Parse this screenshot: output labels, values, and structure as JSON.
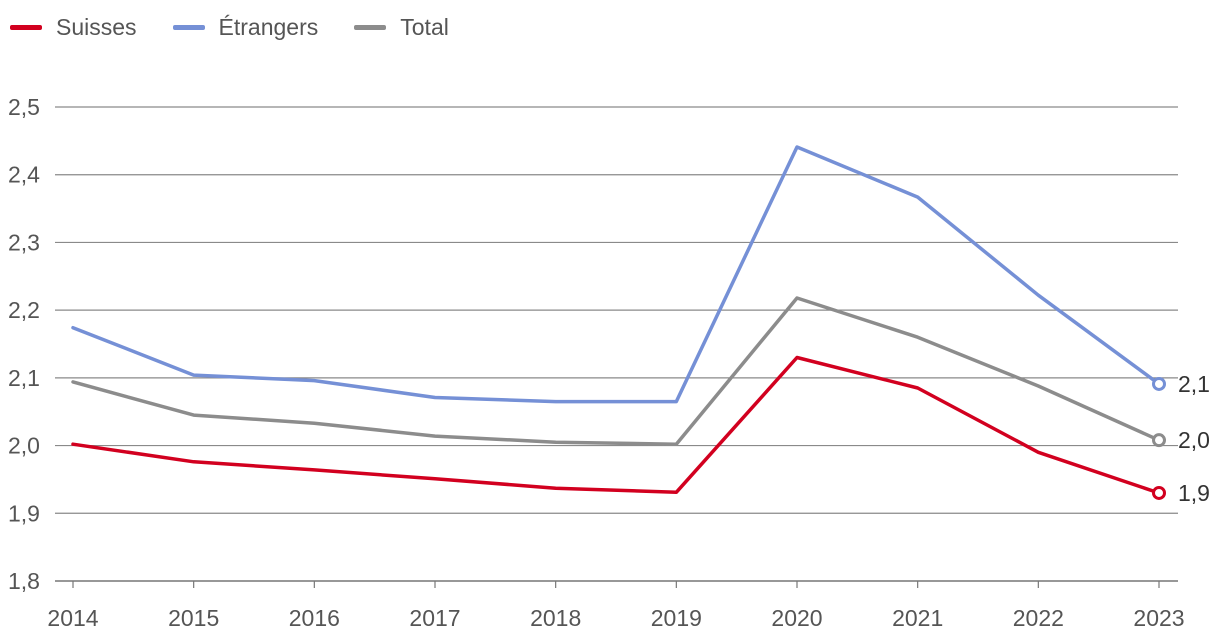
{
  "chart_data": {
    "type": "line",
    "categories": [
      "2014",
      "2015",
      "2016",
      "2017",
      "2018",
      "2019",
      "2020",
      "2021",
      "2022",
      "2023"
    ],
    "series": [
      {
        "name": "Suisses",
        "color": "#d2001f",
        "values": [
          2.002,
          1.976,
          1.964,
          1.951,
          1.937,
          1.931,
          2.13,
          2.085,
          1.99,
          1.93
        ],
        "end_label": "1,9"
      },
      {
        "name": "Étrangers",
        "color": "#7590d6",
        "values": [
          2.174,
          2.104,
          2.096,
          2.071,
          2.065,
          2.065,
          2.441,
          2.367,
          2.222,
          2.091
        ],
        "end_label": "2,1"
      },
      {
        "name": "Total",
        "color": "#8c8c8c",
        "values": [
          2.094,
          2.045,
          2.033,
          2.014,
          2.005,
          2.002,
          2.218,
          2.16,
          2.088,
          2.008
        ],
        "end_label": "2,0"
      }
    ],
    "yticks": [
      "1,8",
      "1,9",
      "2,0",
      "2,1",
      "2,2",
      "2,3",
      "2,4",
      "2,5"
    ],
    "ylim": [
      1.8,
      2.5
    ],
    "title": "",
    "xlabel": "",
    "ylabel": "",
    "legend_position": "top-left"
  }
}
